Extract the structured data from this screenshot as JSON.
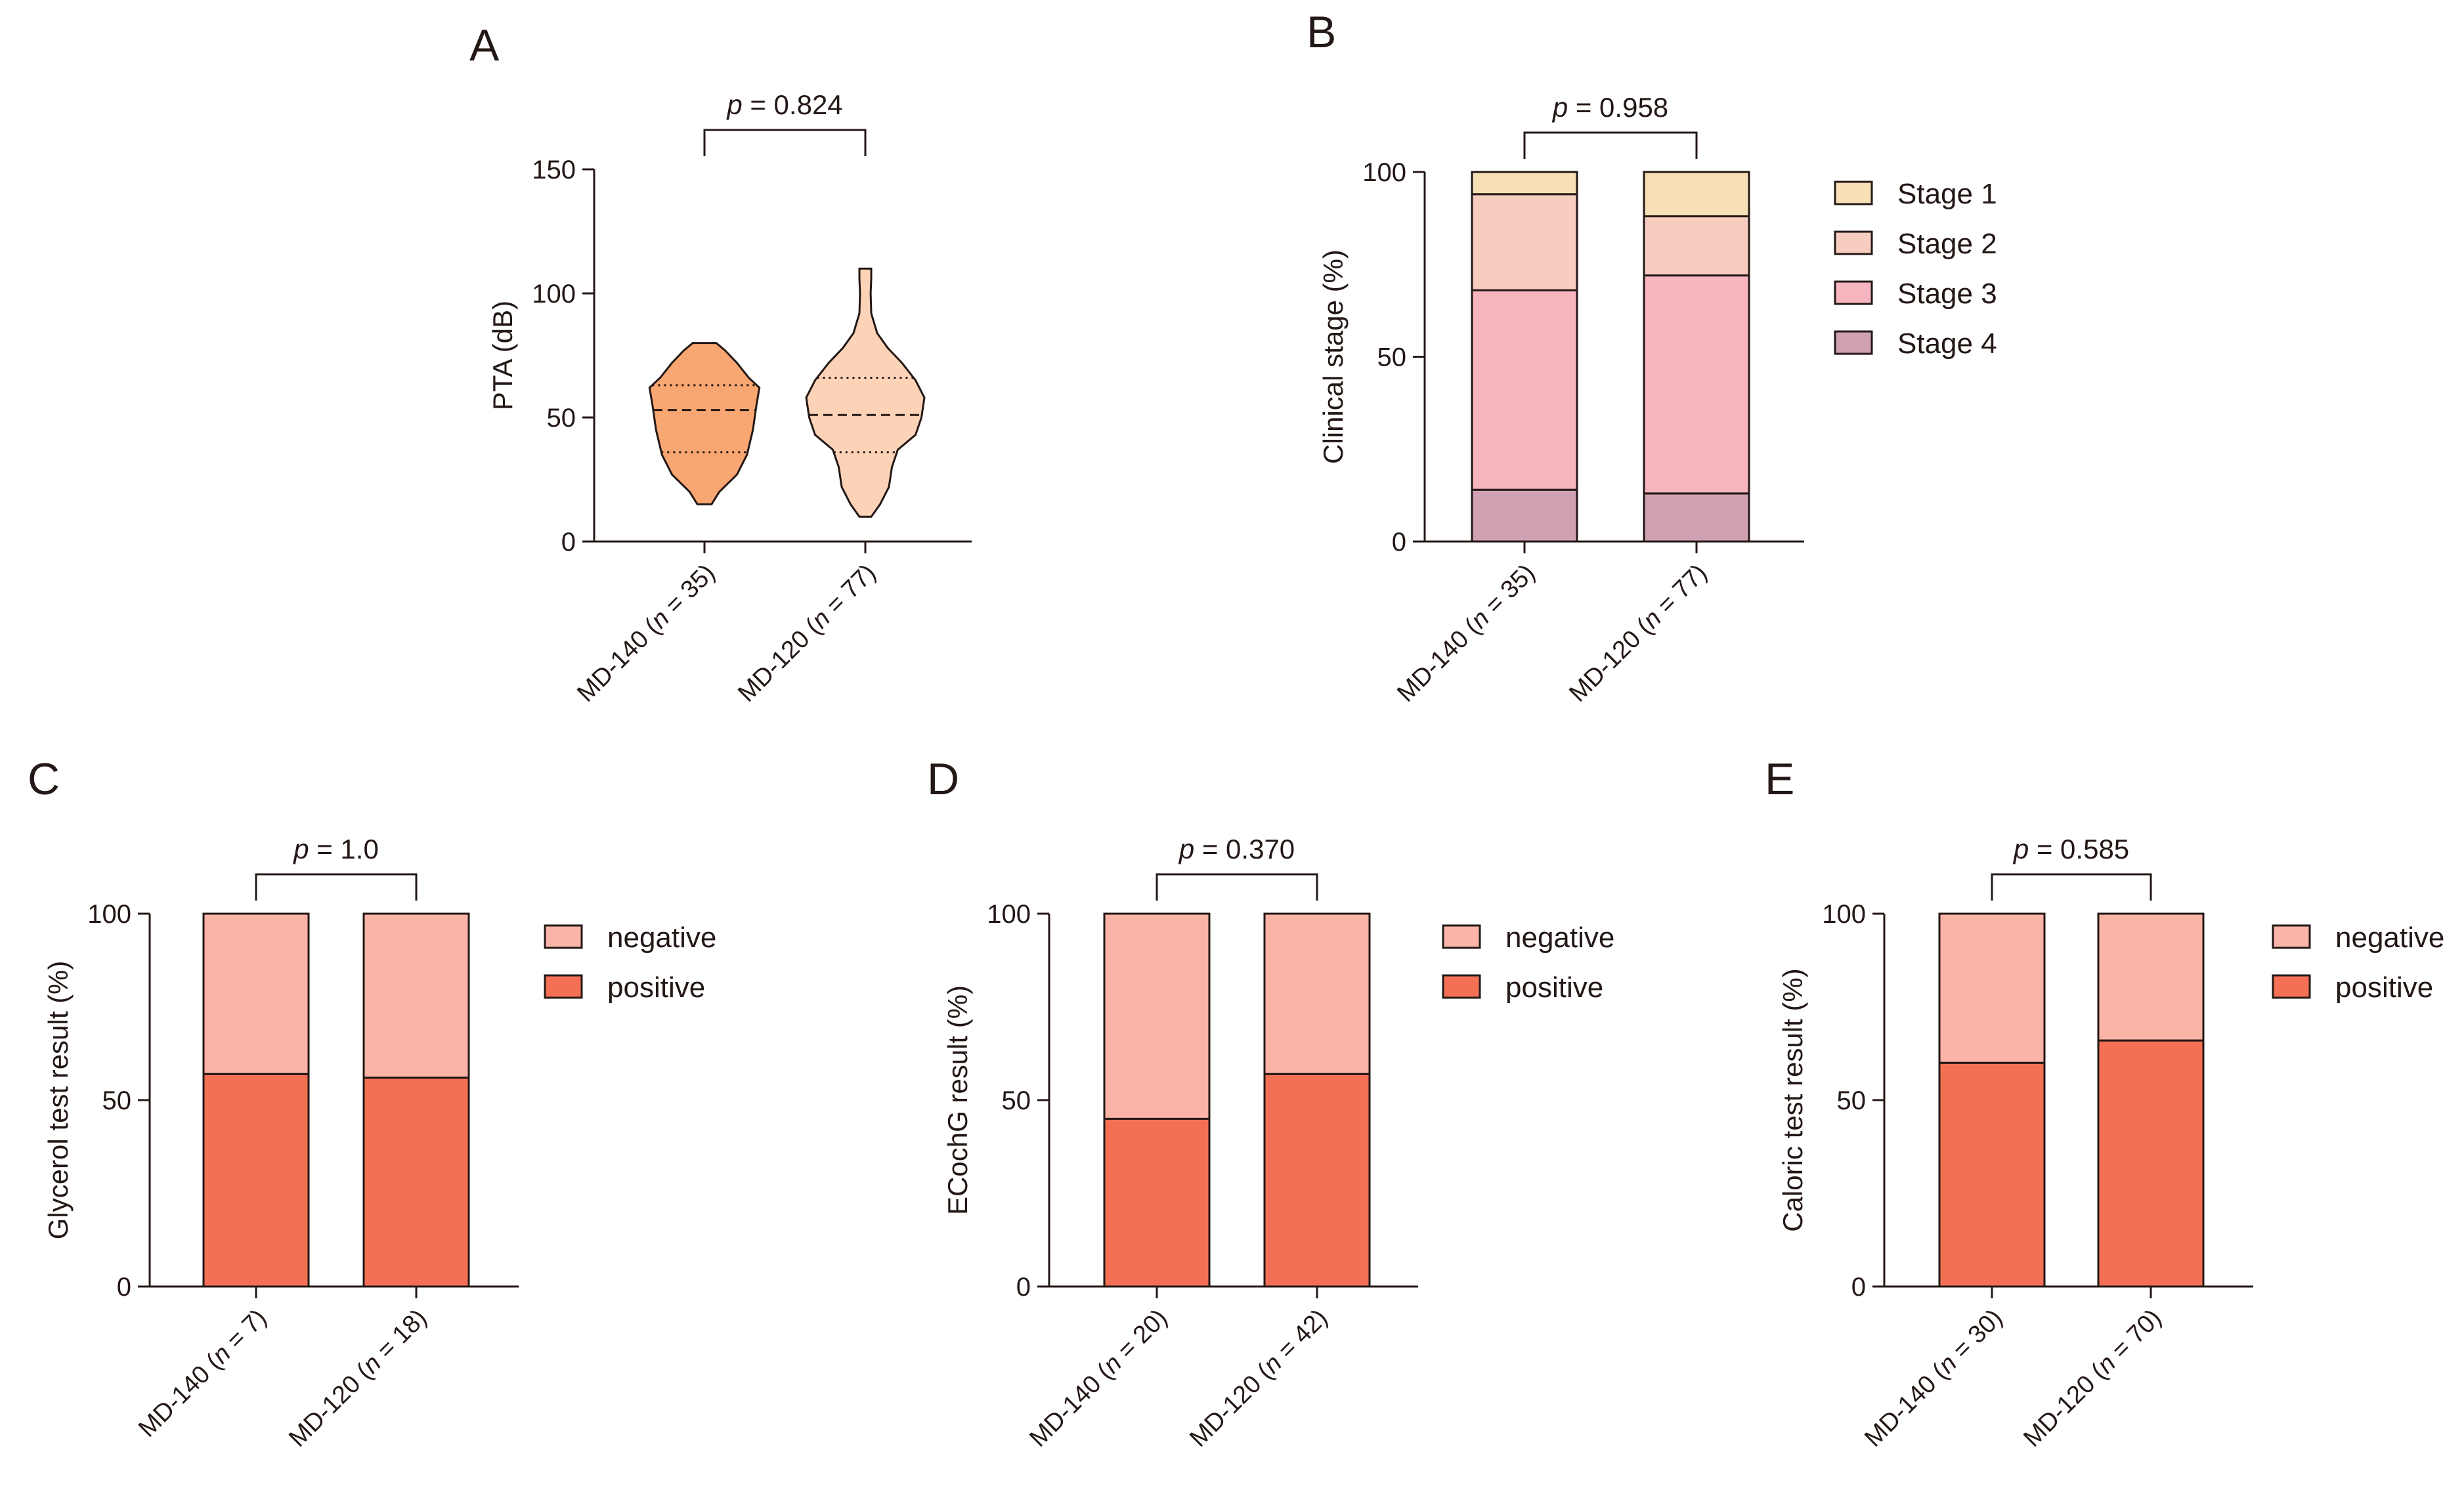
{
  "colors": {
    "ink": "#231815",
    "violin_md140": "#F8A672",
    "violin_md120": "#FDD3B8",
    "stage1": "#F7DFB6",
    "stage2": "#F6CDBF",
    "stage3": "#F6B5BF",
    "stage4": "#D0A1B3",
    "negative": "#FBB4A8",
    "positive": "#F47055"
  },
  "chart_data": [
    {
      "panel": "A",
      "type": "violin",
      "ylabel": "PTA (dB)",
      "ylim": [
        0,
        150
      ],
      "yticks": [
        0,
        50,
        100,
        150
      ],
      "pvalue_prefix": "p",
      "pvalue_text": " = 0.824",
      "categories": [
        {
          "prefix": "MD-140 (",
          "n_var": "n",
          "suffix": " = 35)"
        },
        {
          "prefix": "MD-120 (",
          "n_var": "n",
          "suffix": " = 77)"
        }
      ],
      "series": [
        {
          "name": "MD-140",
          "min": 15,
          "max": 80,
          "q1": 36,
          "median": 53,
          "q3": 63,
          "profile": [
            [
              15,
              0.12
            ],
            [
              20,
              0.25
            ],
            [
              27,
              0.55
            ],
            [
              35,
              0.72
            ],
            [
              45,
              0.82
            ],
            [
              55,
              0.88
            ],
            [
              62,
              0.93
            ],
            [
              66,
              0.75
            ],
            [
              72,
              0.55
            ],
            [
              77,
              0.35
            ],
            [
              80,
              0.2
            ]
          ]
        },
        {
          "name": "MD-120",
          "min": 10,
          "max": 110,
          "q1": 36,
          "median": 51,
          "q3": 66,
          "profile": [
            [
              10,
              0.1
            ],
            [
              15,
              0.25
            ],
            [
              22,
              0.4
            ],
            [
              30,
              0.45
            ],
            [
              37,
              0.55
            ],
            [
              43,
              0.85
            ],
            [
              50,
              0.95
            ],
            [
              58,
              1.0
            ],
            [
              65,
              0.85
            ],
            [
              72,
              0.62
            ],
            [
              78,
              0.38
            ],
            [
              84,
              0.2
            ],
            [
              92,
              0.1
            ],
            [
              100,
              0.09
            ],
            [
              106,
              0.1
            ],
            [
              110,
              0.1
            ]
          ]
        }
      ]
    },
    {
      "panel": "B",
      "type": "bar",
      "stacked": true,
      "ylabel": "Clinical stage (%)",
      "ylim": [
        0,
        100
      ],
      "yticks": [
        0,
        50,
        100
      ],
      "pvalue_prefix": "p",
      "pvalue_text": " = 0.958",
      "categories": [
        {
          "prefix": "MD-140 (",
          "n_var": "n",
          "suffix": " = 35)"
        },
        {
          "prefix": "MD-120 (",
          "n_var": "n",
          "suffix": " = 77)"
        }
      ],
      "series": [
        {
          "name": "Stage 4",
          "color_key": "stage4",
          "values": [
            14,
            13
          ]
        },
        {
          "name": "Stage 3",
          "color_key": "stage3",
          "values": [
            54,
            59
          ]
        },
        {
          "name": "Stage 2",
          "color_key": "stage2",
          "values": [
            26,
            16
          ]
        },
        {
          "name": "Stage 1",
          "color_key": "stage1",
          "values": [
            6,
            12
          ]
        }
      ],
      "legend": [
        "Stage 1",
        "Stage 2",
        "Stage 3",
        "Stage 4"
      ],
      "legend_position": "right"
    },
    {
      "panel": "C",
      "type": "bar",
      "stacked": true,
      "ylabel": "Glycerol test result (%)",
      "ylim": [
        0,
        100
      ],
      "yticks": [
        0,
        50,
        100
      ],
      "pvalue_prefix": "p",
      "pvalue_text": " = 1.0",
      "categories": [
        {
          "prefix": "MD-140 (",
          "n_var": "n",
          "suffix": " = 7)"
        },
        {
          "prefix": "MD-120 (",
          "n_var": "n",
          "suffix": " = 18)"
        }
      ],
      "series": [
        {
          "name": "positive",
          "color_key": "positive",
          "values": [
            57,
            56
          ]
        },
        {
          "name": "negative",
          "color_key": "negative",
          "values": [
            43,
            44
          ]
        }
      ],
      "legend": [
        "negative",
        "positive"
      ],
      "legend_position": "right"
    },
    {
      "panel": "D",
      "type": "bar",
      "stacked": true,
      "ylabel": "ECochG result (%)",
      "ylim": [
        0,
        100
      ],
      "yticks": [
        0,
        50,
        100
      ],
      "pvalue_prefix": "p",
      "pvalue_text": " = 0.370",
      "categories": [
        {
          "prefix": "MD-140 (",
          "n_var": "n",
          "suffix": " = 20)"
        },
        {
          "prefix": "MD-120 (",
          "n_var": "n",
          "suffix": " = 42)"
        }
      ],
      "series": [
        {
          "name": "positive",
          "color_key": "positive",
          "values": [
            45,
            57
          ]
        },
        {
          "name": "negative",
          "color_key": "negative",
          "values": [
            55,
            43
          ]
        }
      ],
      "legend": [
        "negative",
        "positive"
      ],
      "legend_position": "right"
    },
    {
      "panel": "E",
      "type": "bar",
      "stacked": true,
      "ylabel": "Caloric test result (%)",
      "ylim": [
        0,
        100
      ],
      "yticks": [
        0,
        50,
        100
      ],
      "pvalue_prefix": "p",
      "pvalue_text": " = 0.585",
      "categories": [
        {
          "prefix": "MD-140 (",
          "n_var": "n",
          "suffix": " = 30)"
        },
        {
          "prefix": "MD-120 (",
          "n_var": "n",
          "suffix": " = 70)"
        }
      ],
      "series": [
        {
          "name": "positive",
          "color_key": "positive",
          "values": [
            60,
            66
          ]
        },
        {
          "name": "negative",
          "color_key": "negative",
          "values": [
            40,
            34
          ]
        }
      ],
      "legend": [
        "negative",
        "positive"
      ],
      "legend_position": "right"
    }
  ]
}
